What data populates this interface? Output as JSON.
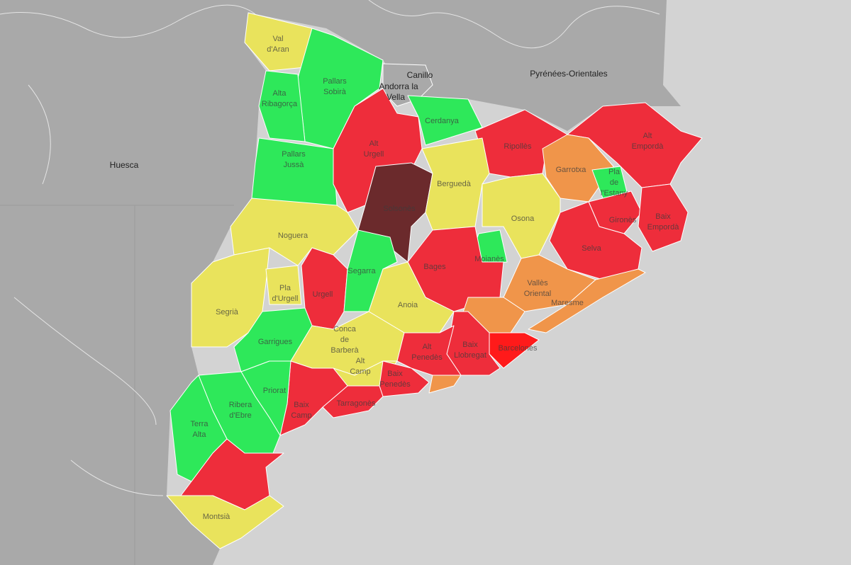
{
  "basemap": {
    "labels": [
      "Canillo",
      "Andorra la",
      "Vella",
      "Pyrénées-Orientales",
      "Huesca"
    ]
  },
  "regions": [
    {
      "label": [
        "Val",
        "d'Aran"
      ],
      "color": "#e9e35c"
    },
    {
      "label": [
        "Pallars",
        "Sobirà"
      ],
      "color": "#2ee85a"
    },
    {
      "label": [
        "Alta",
        "Ribagorça"
      ],
      "color": "#2ee85a"
    },
    {
      "label": [
        "Pallars",
        "Jussà"
      ],
      "color": "#2ee85a"
    },
    {
      "label": [
        "Alt",
        "Urgell"
      ],
      "color": "#ee2d3b"
    },
    {
      "label": [
        "Cerdanya"
      ],
      "color": "#2ee85a"
    },
    {
      "label": [
        "Solsonès"
      ],
      "color": "#6b2a2c"
    },
    {
      "label": [
        "Ripollès"
      ],
      "color": "#ee2d3b"
    },
    {
      "label": [
        "Berguedà"
      ],
      "color": "#e9e35c"
    },
    {
      "label": [
        "Alt",
        "Empordà"
      ],
      "color": "#ee2d3b"
    },
    {
      "label": [
        "Garrotxa"
      ],
      "color": "#f0954a"
    },
    {
      "label": [
        "Pla",
        "de",
        "l'Estany"
      ],
      "color": "#2ee85a"
    },
    {
      "label": [
        "Gironès"
      ],
      "color": "#ee2d3b"
    },
    {
      "label": [
        "Baix",
        "Empordà"
      ],
      "color": "#ee2d3b"
    },
    {
      "label": [
        "Osona"
      ],
      "color": "#e9e35c"
    },
    {
      "label": [
        "Selva"
      ],
      "color": "#ee2d3b"
    },
    {
      "label": [
        "Noguera"
      ],
      "color": "#e9e35c"
    },
    {
      "label": [
        "Segrià"
      ],
      "color": "#e9e35c"
    },
    {
      "label": [
        "Pla",
        "d'Urgell"
      ],
      "color": "#e9e35c"
    },
    {
      "label": [
        "Urgell"
      ],
      "color": "#ee2d3b"
    },
    {
      "label": [
        "Segarra"
      ],
      "color": "#2ee85a"
    },
    {
      "label": [
        "Moianès"
      ],
      "color": "#2ee85a"
    },
    {
      "label": [
        "Bages"
      ],
      "color": "#ee2d3b"
    },
    {
      "label": [
        "Anoia"
      ],
      "color": "#e9e35c"
    },
    {
      "label": [
        "Garrigues"
      ],
      "color": "#2ee85a"
    },
    {
      "label": [
        "Conca",
        "de",
        "Barberà"
      ],
      "color": "#e9e35c"
    },
    {
      "label": [
        "Alt",
        "Camp"
      ],
      "color": "#e9e35c"
    },
    {
      "label": [
        "Vallès",
        "Oriental"
      ],
      "color": "#f0954a"
    },
    {
      "color": "#f0954a"
    },
    {
      "label": [
        "Maresme"
      ],
      "color": "#f0954a"
    },
    {
      "label": [
        "Barcelonès"
      ],
      "color": "#ff1a1a"
    },
    {
      "label": [
        "Baix",
        "Llobregat"
      ],
      "color": "#ee2d3b"
    },
    {
      "label": [
        "Alt",
        "Penedès"
      ],
      "color": "#ee2d3b"
    },
    {
      "color": "#f0954a"
    },
    {
      "label": [
        "Baix",
        "Penedès"
      ],
      "color": "#ee2d3b"
    },
    {
      "label": [
        "Tarragonès"
      ],
      "color": "#ee2d3b"
    },
    {
      "label": [
        "Baix",
        "Camp"
      ],
      "color": "#ee2d3b"
    },
    {
      "label": [
        "Priorat"
      ],
      "color": "#2ee85a"
    },
    {
      "label": [
        "Ribera",
        "d'Ebre"
      ],
      "color": "#2ee85a"
    },
    {
      "label": [
        "Terra",
        "Alta"
      ],
      "color": "#2ee85a"
    },
    {
      "color": "#ee2d3b"
    },
    {
      "label": [
        "Montsià"
      ],
      "color": "#e9e35c"
    }
  ]
}
